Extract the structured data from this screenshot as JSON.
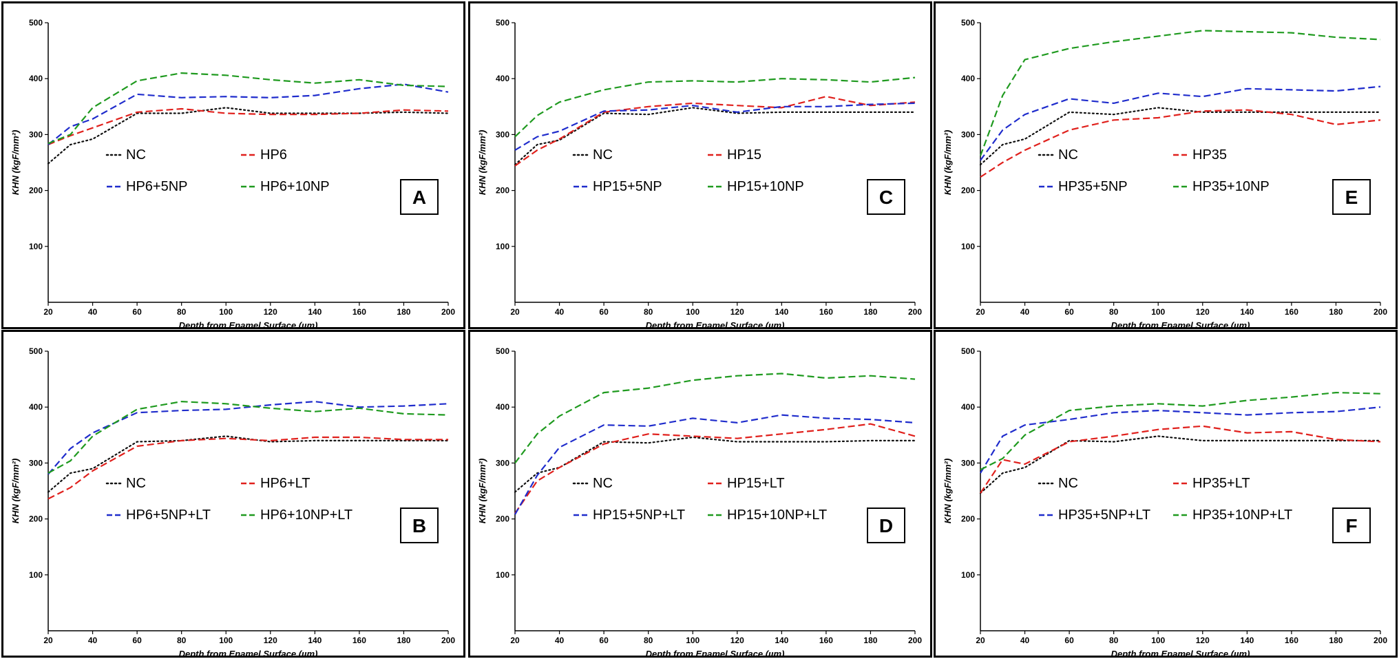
{
  "colors": {
    "NC": "#111111",
    "HP": "#e0201c",
    "5NP": "#1f2ccc",
    "10NP": "#1f9a1f"
  },
  "chart_data": [
    {
      "type": "line",
      "letter": "A",
      "xlabel": "Depth from Enamel Surface (µm)",
      "ylabel": "KHN (kgF/mm²)",
      "xlim": [
        20,
        200
      ],
      "ylim": [
        0,
        500
      ],
      "xticks": [
        20,
        40,
        60,
        80,
        100,
        120,
        140,
        160,
        180,
        200
      ],
      "yticks": [
        100,
        200,
        300,
        400,
        500
      ],
      "x": [
        20,
        30,
        40,
        60,
        80,
        100,
        120,
        140,
        160,
        180,
        200
      ],
      "series": [
        {
          "name": "NC",
          "color_key": "NC",
          "style": "dotted",
          "values": [
            248,
            282,
            292,
            338,
            338,
            348,
            338,
            338,
            338,
            340,
            338
          ]
        },
        {
          "name": "HP6",
          "color_key": "HP",
          "style": "dashed",
          "values": [
            282,
            298,
            312,
            340,
            346,
            338,
            336,
            336,
            338,
            344,
            342
          ]
        },
        {
          "name": "HP6+5NP",
          "color_key": "5NP",
          "style": "dashed",
          "values": [
            282,
            314,
            328,
            372,
            366,
            368,
            366,
            370,
            382,
            390,
            376
          ]
        },
        {
          "name": "HP6+10NP",
          "color_key": "10NP",
          "style": "dashed",
          "values": [
            284,
            300,
            348,
            396,
            410,
            406,
            398,
            392,
            398,
            388,
            386
          ]
        }
      ]
    },
    {
      "type": "line",
      "letter": "C",
      "xlabel": "Depth from Enamel Surface (µm)",
      "ylabel": "KHN (kgF/mm²)",
      "xlim": [
        20,
        200
      ],
      "ylim": [
        0,
        500
      ],
      "xticks": [
        20,
        40,
        60,
        80,
        100,
        120,
        140,
        160,
        180,
        200
      ],
      "yticks": [
        100,
        200,
        300,
        400,
        500
      ],
      "x": [
        20,
        30,
        40,
        60,
        80,
        100,
        120,
        140,
        160,
        180,
        200
      ],
      "series": [
        {
          "name": "NC",
          "color_key": "NC",
          "style": "dotted",
          "values": [
            246,
            282,
            290,
            338,
            336,
            348,
            338,
            340,
            340,
            340,
            340
          ]
        },
        {
          "name": "HP15",
          "color_key": "HP",
          "style": "dashed",
          "values": [
            244,
            272,
            292,
            340,
            350,
            356,
            352,
            348,
            368,
            352,
            358
          ]
        },
        {
          "name": "HP15+5NP",
          "color_key": "5NP",
          "style": "dashed",
          "values": [
            272,
            296,
            306,
            342,
            344,
            352,
            340,
            350,
            350,
            354,
            356
          ]
        },
        {
          "name": "HP15+10NP",
          "color_key": "10NP",
          "style": "dashed",
          "values": [
            296,
            334,
            358,
            380,
            394,
            396,
            394,
            400,
            398,
            394,
            402
          ]
        }
      ]
    },
    {
      "type": "line",
      "letter": "E",
      "xlabel": "Depth from Enamel Surface (µm)",
      "ylabel": "KHN (kgF/mm²)",
      "xlim": [
        20,
        200
      ],
      "ylim": [
        0,
        500
      ],
      "xticks": [
        20,
        40,
        60,
        80,
        100,
        120,
        140,
        160,
        180,
        200
      ],
      "yticks": [
        100,
        200,
        300,
        400,
        500
      ],
      "x": [
        20,
        30,
        40,
        60,
        80,
        100,
        120,
        140,
        160,
        180,
        200
      ],
      "series": [
        {
          "name": "NC",
          "color_key": "NC",
          "style": "dotted",
          "values": [
            246,
            282,
            292,
            340,
            336,
            348,
            340,
            340,
            340,
            340,
            340
          ]
        },
        {
          "name": "HP35",
          "color_key": "HP",
          "style": "dashed",
          "values": [
            224,
            250,
            272,
            308,
            326,
            330,
            342,
            344,
            336,
            318,
            326
          ]
        },
        {
          "name": "HP35+5NP",
          "color_key": "5NP",
          "style": "dashed",
          "values": [
            254,
            308,
            336,
            364,
            356,
            374,
            368,
            382,
            380,
            378,
            386
          ]
        },
        {
          "name": "HP35+10NP",
          "color_key": "10NP",
          "style": "dashed",
          "values": [
            262,
            370,
            434,
            454,
            466,
            476,
            486,
            484,
            482,
            474,
            470
          ]
        }
      ]
    },
    {
      "type": "line",
      "letter": "B",
      "xlabel": "Depth from Enamel Surface (µm)",
      "ylabel": "KHN (kgF/mm²)",
      "xlim": [
        20,
        200
      ],
      "ylim": [
        0,
        500
      ],
      "xticks": [
        20,
        40,
        60,
        80,
        100,
        120,
        140,
        160,
        180,
        200
      ],
      "yticks": [
        100,
        200,
        300,
        400,
        500
      ],
      "x": [
        20,
        30,
        40,
        60,
        80,
        100,
        120,
        140,
        160,
        180,
        200
      ],
      "series": [
        {
          "name": "NC",
          "color_key": "NC",
          "style": "dotted",
          "values": [
            248,
            282,
            290,
            338,
            340,
            348,
            338,
            340,
            340,
            340,
            340
          ]
        },
        {
          "name": "HP6+LT",
          "color_key": "HP",
          "style": "dashed",
          "values": [
            236,
            256,
            286,
            330,
            340,
            344,
            340,
            346,
            346,
            342,
            342
          ]
        },
        {
          "name": "HP6+5NP+LT",
          "color_key": "5NP",
          "style": "dashed",
          "values": [
            280,
            326,
            354,
            390,
            394,
            396,
            404,
            410,
            400,
            402,
            406
          ]
        },
        {
          "name": "HP6+10NP+LT",
          "color_key": "10NP",
          "style": "dashed",
          "values": [
            282,
            304,
            348,
            396,
            410,
            406,
            398,
            392,
            398,
            388,
            386
          ]
        }
      ]
    },
    {
      "type": "line",
      "letter": "D",
      "xlabel": "Depth from Enamel Surface (µm)",
      "ylabel": "KHN (kgF/mm²)",
      "xlim": [
        20,
        200
      ],
      "ylim": [
        0,
        500
      ],
      "xticks": [
        20,
        40,
        60,
        80,
        100,
        120,
        140,
        160,
        180,
        200
      ],
      "yticks": [
        100,
        200,
        300,
        400,
        500
      ],
      "x": [
        20,
        30,
        40,
        60,
        80,
        100,
        120,
        140,
        160,
        180,
        200
      ],
      "series": [
        {
          "name": "NC",
          "color_key": "NC",
          "style": "dotted",
          "values": [
            248,
            282,
            292,
            338,
            336,
            346,
            338,
            338,
            338,
            340,
            340
          ]
        },
        {
          "name": "HP15+LT",
          "color_key": "HP",
          "style": "dashed",
          "values": [
            210,
            268,
            292,
            334,
            352,
            348,
            344,
            352,
            360,
            370,
            348
          ]
        },
        {
          "name": "HP15+5NP+LT",
          "color_key": "5NP",
          "style": "dashed",
          "values": [
            208,
            278,
            328,
            368,
            366,
            380,
            372,
            386,
            380,
            378,
            372
          ]
        },
        {
          "name": "HP15+10NP+LT",
          "color_key": "10NP",
          "style": "dashed",
          "values": [
            300,
            352,
            384,
            426,
            434,
            448,
            456,
            460,
            452,
            456,
            450
          ]
        }
      ]
    },
    {
      "type": "line",
      "letter": "F",
      "xlabel": "Depth from Enamel Surface (µm)",
      "ylabel": "KHN (kgF/mm²)",
      "xlim": [
        20,
        200
      ],
      "ylim": [
        0,
        500
      ],
      "xticks": [
        20,
        40,
        60,
        80,
        100,
        120,
        140,
        160,
        180,
        200
      ],
      "yticks": [
        100,
        200,
        300,
        400,
        500
      ],
      "x": [
        20,
        30,
        40,
        60,
        80,
        100,
        120,
        140,
        160,
        180,
        200
      ],
      "series": [
        {
          "name": "NC",
          "color_key": "NC",
          "style": "dotted",
          "values": [
            246,
            282,
            292,
            340,
            338,
            348,
            340,
            340,
            340,
            340,
            340
          ]
        },
        {
          "name": "HP35+LT",
          "color_key": "HP",
          "style": "dashed",
          "values": [
            246,
            306,
            298,
            338,
            348,
            360,
            366,
            354,
            356,
            342,
            338
          ]
        },
        {
          "name": "HP35+5NP+LT",
          "color_key": "5NP",
          "style": "dashed",
          "values": [
            282,
            348,
            368,
            378,
            390,
            394,
            390,
            386,
            390,
            392,
            400
          ]
        },
        {
          "name": "HP35+10NP+LT",
          "color_key": "10NP",
          "style": "dashed",
          "values": [
            288,
            308,
            350,
            394,
            402,
            406,
            402,
            412,
            418,
            426,
            424
          ]
        }
      ]
    }
  ]
}
